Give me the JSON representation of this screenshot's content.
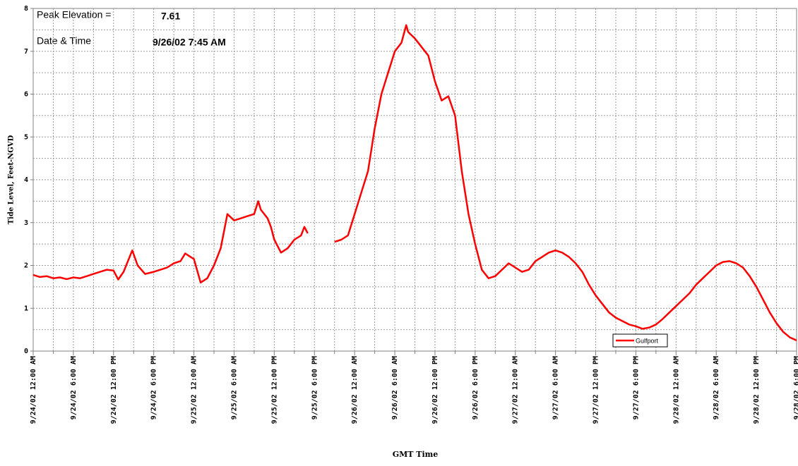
{
  "chart_data": {
    "type": "line",
    "ylabel": "Tide Level, Feet-NGVD",
    "xlabel": "GMT Time",
    "annotations": [
      "Peak Elevation =",
      "7.61",
      "Date & Time",
      "9/26/02 7:45 AM"
    ],
    "legend": "lower right",
    "grid": true,
    "ylim": [
      0,
      8
    ],
    "yticks": [
      0,
      1,
      2,
      3,
      4,
      5,
      6,
      7,
      8
    ],
    "xlim": [
      0,
      114
    ],
    "xticks": [
      {
        "value": 0,
        "label": "9/24/02 12:00 AM"
      },
      {
        "value": 6,
        "label": "9/24/02 6:00 AM"
      },
      {
        "value": 12,
        "label": "9/24/02 12:00 PM"
      },
      {
        "value": 18,
        "label": "9/24/02 6:00 PM"
      },
      {
        "value": 24,
        "label": "9/25/02 12:00 AM"
      },
      {
        "value": 30,
        "label": "9/25/02 6:00 AM"
      },
      {
        "value": 36,
        "label": "9/25/02 12:00 PM"
      },
      {
        "value": 42,
        "label": "9/25/02 6:00 PM"
      },
      {
        "value": 48,
        "label": "9/26/02 12:00 AM"
      },
      {
        "value": 54,
        "label": "9/26/02 6:00 AM"
      },
      {
        "value": 60,
        "label": "9/26/02 12:00 PM"
      },
      {
        "value": 66,
        "label": "9/26/02 6:00 PM"
      },
      {
        "value": 72,
        "label": "9/27/02 12:00 AM"
      },
      {
        "value": 78,
        "label": "9/27/02 6:00 AM"
      },
      {
        "value": 84,
        "label": "9/27/02 12:00 PM"
      },
      {
        "value": 90,
        "label": "9/27/02 6:00 PM"
      },
      {
        "value": 96,
        "label": "9/28/02 12:00 AM"
      },
      {
        "value": 102,
        "label": "9/28/02 6:00 AM"
      },
      {
        "value": 108,
        "label": "9/28/02 12:00 PM"
      },
      {
        "value": 114,
        "label": "9/28/02 6:00 PM"
      }
    ],
    "x": [
      0,
      1,
      2,
      3,
      4,
      5,
      6,
      7,
      8,
      9,
      10,
      11,
      12,
      12.7,
      13.5,
      14.8,
      15.6,
      16.7,
      18,
      19,
      20,
      21,
      22,
      22.7,
      23.5,
      24,
      25,
      26,
      27,
      28,
      29,
      30,
      31,
      32,
      33,
      33.6,
      34,
      35,
      35.5,
      36,
      37,
      38,
      39,
      40,
      40.5,
      41,
      43,
      45,
      46,
      47,
      48,
      49,
      50,
      51,
      52,
      53,
      54,
      55,
      55.7,
      56,
      57,
      58,
      59,
      60,
      61,
      62,
      63,
      64,
      65,
      66,
      67,
      68,
      69,
      70,
      71,
      72,
      73,
      74,
      75,
      76,
      77,
      78,
      79,
      80,
      81,
      82,
      83,
      84,
      85,
      86,
      87,
      88,
      89,
      90,
      91,
      92,
      93,
      94,
      95,
      96,
      97,
      98,
      99,
      100,
      101,
      102,
      103,
      104,
      105,
      106,
      107,
      108,
      109,
      110,
      111,
      112,
      113,
      114
    ],
    "series": [
      {
        "name": "Gulfport",
        "color": "#ff0000",
        "values": [
          1.78,
          1.73,
          1.75,
          1.7,
          1.72,
          1.68,
          1.72,
          1.7,
          1.75,
          1.8,
          1.85,
          1.9,
          1.88,
          1.67,
          1.85,
          2.35,
          2.0,
          1.8,
          1.85,
          1.9,
          1.95,
          2.05,
          2.1,
          2.28,
          2.2,
          2.15,
          1.6,
          1.7,
          2.0,
          2.4,
          3.2,
          3.05,
          3.1,
          3.15,
          3.2,
          3.5,
          3.3,
          3.1,
          2.9,
          2.6,
          2.3,
          2.4,
          2.6,
          2.7,
          2.9,
          2.75,
          null,
          2.55,
          2.6,
          2.7,
          3.2,
          3.7,
          4.2,
          5.2,
          6.0,
          6.5,
          7.0,
          7.2,
          7.61,
          7.45,
          7.3,
          7.1,
          6.9,
          6.3,
          5.85,
          5.95,
          5.5,
          4.2,
          3.2,
          2.5,
          1.9,
          1.7,
          1.75,
          1.9,
          2.05,
          1.95,
          1.85,
          1.9,
          2.1,
          2.2,
          2.3,
          2.35,
          2.3,
          2.2,
          2.05,
          1.85,
          1.55,
          1.3,
          1.1,
          0.9,
          0.78,
          0.7,
          0.62,
          0.58,
          0.52,
          0.55,
          0.62,
          0.75,
          0.9,
          1.05,
          1.2,
          1.35,
          1.55,
          1.7,
          1.85,
          2.0,
          2.08,
          2.1,
          2.05,
          1.95,
          1.75,
          1.5,
          1.2,
          0.9,
          0.65,
          0.45,
          0.32,
          0.25
        ]
      }
    ]
  }
}
